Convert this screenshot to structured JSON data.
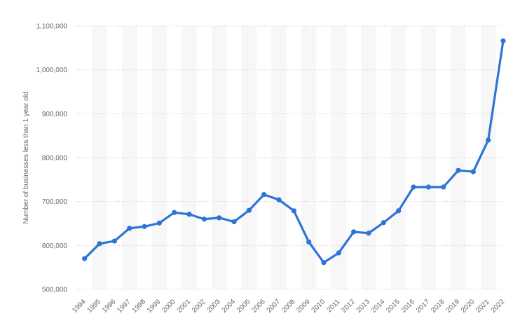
{
  "chart_data": {
    "type": "line",
    "title": "",
    "xlabel": "",
    "ylabel": "Number of businesses less than 1 year old",
    "x": [
      "1994",
      "1995",
      "1996",
      "1997",
      "1998",
      "1999",
      "2000",
      "2001",
      "2002",
      "2003",
      "2004",
      "2005",
      "2006",
      "2007",
      "2008",
      "2009",
      "2010",
      "2011",
      "2012",
      "2013",
      "2014",
      "2015",
      "2016",
      "2017",
      "2018",
      "2019",
      "2020",
      "2021",
      "2022"
    ],
    "series": [
      {
        "values": [
          570000,
          604000,
          610000,
          639000,
          643000,
          651000,
          675000,
          671000,
          660000,
          663000,
          654000,
          680000,
          716000,
          704000,
          679000,
          608000,
          561000,
          583000,
          631000,
          628000,
          652000,
          679000,
          733000,
          733000,
          733000,
          771000,
          768000,
          840000,
          1066000
        ],
        "color": "#2e73d6"
      }
    ],
    "ylim": [
      500000,
      1100000
    ],
    "yticks": [
      {
        "value": 500000,
        "label": "500,000"
      },
      {
        "value": 600000,
        "label": "600,000"
      },
      {
        "value": 700000,
        "label": "700,000"
      },
      {
        "value": 800000,
        "label": "800,000"
      },
      {
        "value": 900000,
        "label": "900,000"
      },
      {
        "value": 1000000,
        "label": "1,000,000"
      },
      {
        "value": 1100000,
        "label": "1,100,000"
      }
    ],
    "grid": true,
    "grid_style": "dotted",
    "alternating_column_bands": true,
    "band_color": "#f7f7f7",
    "gridline_color": "#cccccc"
  }
}
